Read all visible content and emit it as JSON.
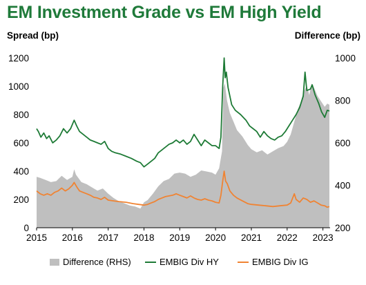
{
  "chart_data": {
    "type": "line",
    "title": "EM Investment Grade vs EM High Yield",
    "ylabel_left": "Spread (bp)",
    "ylabel_right": "Difference (bp)",
    "xlabel": "",
    "x_ticks": [
      "2015",
      "2016",
      "2017",
      "2018",
      "2019",
      "2020",
      "2021",
      "2022",
      "2023"
    ],
    "x_range": [
      2015.0,
      2023.2
    ],
    "ylim_left": [
      0,
      1200
    ],
    "yticks_left": [
      0,
      200,
      400,
      600,
      800,
      1000,
      1200
    ],
    "ylim_right": [
      200,
      1000
    ],
    "yticks_right": [
      200,
      400,
      600,
      800,
      1000
    ],
    "legend_position": "bottom",
    "grid": false,
    "series": [
      {
        "name": "Difference (RHS)",
        "kind": "area",
        "axis": "right",
        "color": "#bfbfbf",
        "points": [
          [
            2015.0,
            440
          ],
          [
            2015.1,
            435
          ],
          [
            2015.25,
            425
          ],
          [
            2015.4,
            415
          ],
          [
            2015.55,
            420
          ],
          [
            2015.7,
            445
          ],
          [
            2015.85,
            425
          ],
          [
            2016.0,
            440
          ],
          [
            2016.05,
            475
          ],
          [
            2016.1,
            450
          ],
          [
            2016.25,
            415
          ],
          [
            2016.4,
            405
          ],
          [
            2016.55,
            390
          ],
          [
            2016.7,
            375
          ],
          [
            2016.85,
            385
          ],
          [
            2017.0,
            360
          ],
          [
            2017.15,
            340
          ],
          [
            2017.3,
            325
          ],
          [
            2017.45,
            315
          ],
          [
            2017.6,
            305
          ],
          [
            2017.75,
            300
          ],
          [
            2017.9,
            290
          ],
          [
            2018.0,
            320
          ],
          [
            2018.1,
            330
          ],
          [
            2018.25,
            360
          ],
          [
            2018.4,
            395
          ],
          [
            2018.55,
            420
          ],
          [
            2018.7,
            430
          ],
          [
            2018.85,
            455
          ],
          [
            2019.0,
            460
          ],
          [
            2019.15,
            455
          ],
          [
            2019.3,
            440
          ],
          [
            2019.45,
            450
          ],
          [
            2019.6,
            470
          ],
          [
            2019.75,
            465
          ],
          [
            2019.9,
            460
          ],
          [
            2020.0,
            450
          ],
          [
            2020.1,
            480
          ],
          [
            2020.18,
            560
          ],
          [
            2020.22,
            860
          ],
          [
            2020.26,
            880
          ],
          [
            2020.32,
            800
          ],
          [
            2020.4,
            740
          ],
          [
            2020.5,
            700
          ],
          [
            2020.6,
            660
          ],
          [
            2020.75,
            630
          ],
          [
            2020.9,
            590
          ],
          [
            2021.0,
            570
          ],
          [
            2021.15,
            555
          ],
          [
            2021.3,
            565
          ],
          [
            2021.45,
            545
          ],
          [
            2021.6,
            560
          ],
          [
            2021.75,
            575
          ],
          [
            2021.9,
            585
          ],
          [
            2022.0,
            605
          ],
          [
            2022.1,
            640
          ],
          [
            2022.2,
            700
          ],
          [
            2022.3,
            760
          ],
          [
            2022.38,
            790
          ],
          [
            2022.46,
            840
          ],
          [
            2022.55,
            870
          ],
          [
            2022.62,
            825
          ],
          [
            2022.68,
            880
          ],
          [
            2022.75,
            860
          ],
          [
            2022.85,
            820
          ],
          [
            2022.95,
            795
          ],
          [
            2023.05,
            770
          ],
          [
            2023.12,
            785
          ],
          [
            2023.18,
            780
          ]
        ]
      },
      {
        "name": "EMBIG Div HY",
        "kind": "line",
        "axis": "left",
        "color": "#1d7a35",
        "points": [
          [
            2015.0,
            700
          ],
          [
            2015.05,
            680
          ],
          [
            2015.12,
            640
          ],
          [
            2015.2,
            670
          ],
          [
            2015.28,
            630
          ],
          [
            2015.35,
            650
          ],
          [
            2015.45,
            600
          ],
          [
            2015.55,
            620
          ],
          [
            2015.65,
            650
          ],
          [
            2015.75,
            700
          ],
          [
            2015.85,
            670
          ],
          [
            2015.95,
            700
          ],
          [
            2016.05,
            760
          ],
          [
            2016.12,
            720
          ],
          [
            2016.2,
            680
          ],
          [
            2016.3,
            660
          ],
          [
            2016.4,
            640
          ],
          [
            2016.5,
            620
          ],
          [
            2016.6,
            610
          ],
          [
            2016.7,
            600
          ],
          [
            2016.8,
            590
          ],
          [
            2016.9,
            610
          ],
          [
            2017.0,
            560
          ],
          [
            2017.1,
            540
          ],
          [
            2017.2,
            530
          ],
          [
            2017.35,
            520
          ],
          [
            2017.5,
            505
          ],
          [
            2017.65,
            490
          ],
          [
            2017.8,
            470
          ],
          [
            2017.9,
            460
          ],
          [
            2018.0,
            430
          ],
          [
            2018.1,
            450
          ],
          [
            2018.2,
            470
          ],
          [
            2018.3,
            490
          ],
          [
            2018.4,
            530
          ],
          [
            2018.5,
            550
          ],
          [
            2018.6,
            570
          ],
          [
            2018.7,
            590
          ],
          [
            2018.8,
            600
          ],
          [
            2018.9,
            620
          ],
          [
            2019.0,
            600
          ],
          [
            2019.1,
            620
          ],
          [
            2019.2,
            590
          ],
          [
            2019.3,
            610
          ],
          [
            2019.4,
            660
          ],
          [
            2019.5,
            620
          ],
          [
            2019.6,
            580
          ],
          [
            2019.7,
            620
          ],
          [
            2019.8,
            600
          ],
          [
            2019.9,
            580
          ],
          [
            2020.0,
            580
          ],
          [
            2020.1,
            560
          ],
          [
            2020.15,
            640
          ],
          [
            2020.2,
            1000
          ],
          [
            2020.24,
            1200
          ],
          [
            2020.27,
            1060
          ],
          [
            2020.3,
            1100
          ],
          [
            2020.35,
            990
          ],
          [
            2020.45,
            870
          ],
          [
            2020.55,
            830
          ],
          [
            2020.7,
            800
          ],
          [
            2020.85,
            760
          ],
          [
            2020.95,
            720
          ],
          [
            2021.05,
            700
          ],
          [
            2021.15,
            680
          ],
          [
            2021.25,
            640
          ],
          [
            2021.35,
            680
          ],
          [
            2021.45,
            650
          ],
          [
            2021.55,
            630
          ],
          [
            2021.65,
            620
          ],
          [
            2021.75,
            640
          ],
          [
            2021.85,
            650
          ],
          [
            2021.95,
            680
          ],
          [
            2022.05,
            720
          ],
          [
            2022.15,
            760
          ],
          [
            2022.25,
            800
          ],
          [
            2022.35,
            850
          ],
          [
            2022.45,
            930
          ],
          [
            2022.5,
            1100
          ],
          [
            2022.55,
            970
          ],
          [
            2022.65,
            980
          ],
          [
            2022.7,
            1010
          ],
          [
            2022.78,
            940
          ],
          [
            2022.88,
            880
          ],
          [
            2022.96,
            820
          ],
          [
            2023.05,
            780
          ],
          [
            2023.12,
            830
          ],
          [
            2023.18,
            825
          ]
        ]
      },
      {
        "name": "EMBIG Div IG",
        "kind": "line",
        "axis": "left",
        "color": "#f08332",
        "points": [
          [
            2015.0,
            260
          ],
          [
            2015.1,
            240
          ],
          [
            2015.2,
            230
          ],
          [
            2015.3,
            240
          ],
          [
            2015.4,
            230
          ],
          [
            2015.5,
            250
          ],
          [
            2015.6,
            260
          ],
          [
            2015.7,
            280
          ],
          [
            2015.8,
            260
          ],
          [
            2015.9,
            275
          ],
          [
            2016.0,
            300
          ],
          [
            2016.05,
            320
          ],
          [
            2016.12,
            290
          ],
          [
            2016.2,
            260
          ],
          [
            2016.3,
            250
          ],
          [
            2016.4,
            240
          ],
          [
            2016.5,
            230
          ],
          [
            2016.6,
            215
          ],
          [
            2016.7,
            210
          ],
          [
            2016.8,
            200
          ],
          [
            2016.9,
            215
          ],
          [
            2017.0,
            195
          ],
          [
            2017.15,
            190
          ],
          [
            2017.3,
            185
          ],
          [
            2017.5,
            180
          ],
          [
            2017.7,
            170
          ],
          [
            2017.85,
            165
          ],
          [
            2018.0,
            160
          ],
          [
            2018.1,
            165
          ],
          [
            2018.2,
            175
          ],
          [
            2018.3,
            185
          ],
          [
            2018.4,
            200
          ],
          [
            2018.5,
            210
          ],
          [
            2018.6,
            220
          ],
          [
            2018.7,
            225
          ],
          [
            2018.8,
            230
          ],
          [
            2018.9,
            240
          ],
          [
            2019.0,
            230
          ],
          [
            2019.1,
            220
          ],
          [
            2019.2,
            210
          ],
          [
            2019.3,
            225
          ],
          [
            2019.4,
            210
          ],
          [
            2019.5,
            200
          ],
          [
            2019.6,
            195
          ],
          [
            2019.7,
            205
          ],
          [
            2019.8,
            195
          ],
          [
            2019.9,
            190
          ],
          [
            2020.0,
            180
          ],
          [
            2020.1,
            175
          ],
          [
            2020.15,
            230
          ],
          [
            2020.2,
            330
          ],
          [
            2020.24,
            400
          ],
          [
            2020.28,
            330
          ],
          [
            2020.33,
            310
          ],
          [
            2020.4,
            260
          ],
          [
            2020.5,
            230
          ],
          [
            2020.6,
            210
          ],
          [
            2020.75,
            190
          ],
          [
            2020.9,
            170
          ],
          [
            2021.0,
            165
          ],
          [
            2021.2,
            160
          ],
          [
            2021.4,
            155
          ],
          [
            2021.6,
            150
          ],
          [
            2021.8,
            155
          ],
          [
            2022.0,
            160
          ],
          [
            2022.1,
            175
          ],
          [
            2022.2,
            240
          ],
          [
            2022.25,
            200
          ],
          [
            2022.35,
            180
          ],
          [
            2022.45,
            210
          ],
          [
            2022.55,
            200
          ],
          [
            2022.65,
            180
          ],
          [
            2022.75,
            190
          ],
          [
            2022.85,
            175
          ],
          [
            2022.95,
            160
          ],
          [
            2023.05,
            155
          ],
          [
            2023.12,
            145
          ],
          [
            2023.18,
            150
          ]
        ]
      }
    ]
  }
}
